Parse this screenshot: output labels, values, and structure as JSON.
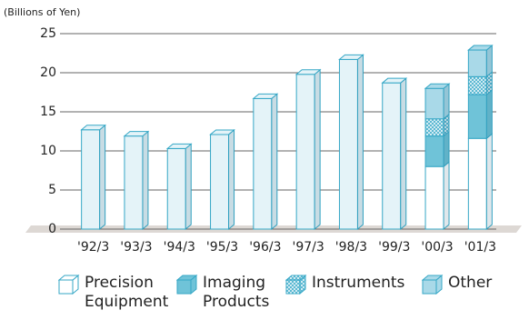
{
  "chart_data": {
    "type": "stacked-bar",
    "y_label": "(Billions of Yen)",
    "categories": [
      "'92/3",
      "'93/3",
      "'94/3",
      "'95/3",
      "'96/3",
      "'97/3",
      "'98/3",
      "'99/3",
      "'00/3",
      "'01/3"
    ],
    "values": [
      12.7,
      11.9,
      10.3,
      12.1,
      16.7,
      19.8,
      21.7,
      18.7,
      null,
      null
    ],
    "color": "#e4f3f8",
    "series": [
      {
        "name": "Precision Equipment",
        "color": "#ffffff",
        "values": [
          null,
          null,
          null,
          null,
          null,
          null,
          null,
          null,
          8.0,
          11.6
        ]
      },
      {
        "name": "Imaging Products",
        "color": "#6fc3d8",
        "values": [
          null,
          null,
          null,
          null,
          null,
          null,
          null,
          null,
          3.9,
          5.6
        ]
      },
      {
        "name": "Instruments",
        "color": "#4fb3cf",
        "hatch": true,
        "values": [
          null,
          null,
          null,
          null,
          null,
          null,
          null,
          null,
          2.2,
          2.3
        ]
      },
      {
        "name": "Other",
        "color": "#a9d9e8",
        "values": [
          null,
          null,
          null,
          null,
          null,
          null,
          null,
          null,
          3.9,
          3.4
        ]
      }
    ],
    "ylim": [
      0,
      25
    ],
    "yticks": [
      0,
      5,
      10,
      15,
      20,
      25
    ],
    "grid": true
  }
}
